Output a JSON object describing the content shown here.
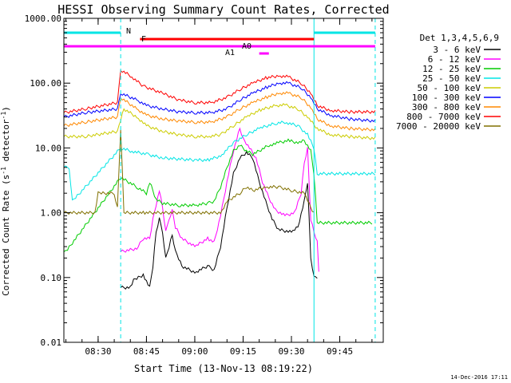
{
  "chart_data": {
    "type": "line",
    "title": "HESSI Observing Summary Count Rates, Corrected",
    "xlabel": "Start Time (13-Nov-13 08:19:22)",
    "ylabel": "Corrected Count Rate (s⁻¹ detector⁻¹)",
    "ylabel_main": "Corrected Count Rate (s",
    "ylabel_mid": ")",
    "ylabel_sup1": "-1",
    "ylabel_sup2": "-1",
    "ylabel_detector": "detector",
    "timestamp": "14-Dec-2016 17:11",
    "ylim": [
      0.01,
      1000
    ],
    "yscale": "log",
    "xlim_minutes": [
      "08:19:22",
      "09:58:30"
    ],
    "y_ticks": [
      {
        "value": 1000,
        "label": "1000.00"
      },
      {
        "value": 100,
        "label": "100.00"
      },
      {
        "value": 10,
        "label": "10.00"
      },
      {
        "value": 1,
        "label": "1.00"
      },
      {
        "value": 0.1,
        "label": "0.10"
      },
      {
        "value": 0.01,
        "label": "0.01"
      }
    ],
    "x_ticks": [
      {
        "value": "08:30",
        "label": "08:30"
      },
      {
        "value": "08:45",
        "label": "08:45"
      },
      {
        "value": "09:00",
        "label": "09:00"
      },
      {
        "value": "09:15",
        "label": "09:15"
      },
      {
        "value": "09:30",
        "label": "09:30"
      },
      {
        "value": "09:45",
        "label": "09:45"
      }
    ],
    "legend_title": "Det 1,3,4,5,6,9",
    "legend_position": "right",
    "series": [
      {
        "name": "3 - 6 keV",
        "color": "#000000",
        "points": [
          [
            "08:37",
            0.07
          ],
          [
            "08:40",
            0.07
          ],
          [
            "08:41",
            0.09
          ],
          [
            "08:44",
            0.11
          ],
          [
            "08:46",
            0.07
          ],
          [
            "08:47",
            0.15
          ],
          [
            "08:48",
            0.5
          ],
          [
            "08:49",
            0.8
          ],
          [
            "08:50",
            0.5
          ],
          [
            "08:51",
            0.2
          ],
          [
            "08:52",
            0.3
          ],
          [
            "08:53",
            0.45
          ],
          [
            "08:54",
            0.25
          ],
          [
            "08:56",
            0.15
          ],
          [
            "09:00",
            0.12
          ],
          [
            "09:04",
            0.15
          ],
          [
            "09:06",
            0.13
          ],
          [
            "09:08",
            0.3
          ],
          [
            "09:10",
            1.2
          ],
          [
            "09:12",
            4
          ],
          [
            "09:14",
            7
          ],
          [
            "09:16",
            8.5
          ],
          [
            "09:18",
            7
          ],
          [
            "09:20",
            3
          ],
          [
            "09:22",
            1.5
          ],
          [
            "09:24",
            0.8
          ],
          [
            "09:26",
            0.55
          ],
          [
            "09:30",
            0.5
          ],
          [
            "09:32",
            0.6
          ],
          [
            "09:34",
            1.5
          ],
          [
            "09:35",
            3
          ],
          [
            "09:36",
            0.2
          ],
          [
            "09:37",
            0.1
          ],
          [
            "09:38",
            0.1
          ]
        ]
      },
      {
        "name": "6 - 12 keV",
        "color": "#ff00ff",
        "points": [
          [
            "08:37",
            0.25
          ],
          [
            "08:42",
            0.28
          ],
          [
            "08:44",
            0.4
          ],
          [
            "08:46",
            0.4
          ],
          [
            "08:47",
            0.8
          ],
          [
            "08:49",
            2.2
          ],
          [
            "08:50",
            1.2
          ],
          [
            "08:51",
            0.5
          ],
          [
            "08:52",
            0.8
          ],
          [
            "08:53",
            1.1
          ],
          [
            "08:54",
            0.6
          ],
          [
            "08:56",
            0.4
          ],
          [
            "09:00",
            0.3
          ],
          [
            "09:04",
            0.4
          ],
          [
            "09:06",
            0.35
          ],
          [
            "09:08",
            0.9
          ],
          [
            "09:10",
            3
          ],
          [
            "09:12",
            9
          ],
          [
            "09:14",
            20
          ],
          [
            "09:15",
            14
          ],
          [
            "09:17",
            10
          ],
          [
            "09:19",
            7
          ],
          [
            "09:21",
            3
          ],
          [
            "09:23",
            1.7
          ],
          [
            "09:25",
            1.1
          ],
          [
            "09:28",
            0.9
          ],
          [
            "09:31",
            1
          ],
          [
            "09:33",
            2
          ],
          [
            "09:34",
            6
          ],
          [
            "09:35",
            10
          ],
          [
            "09:36",
            0.8
          ],
          [
            "09:37",
            0.5
          ],
          [
            "09:38",
            0.35
          ],
          [
            "09:38.5",
            0.12
          ]
        ]
      },
      {
        "name": "12 - 25 keV",
        "color": "#00cc00",
        "points": [
          [
            "08:19:22",
            0.25
          ],
          [
            "08:20",
            0.25
          ],
          [
            "08:37",
            3.5
          ],
          [
            "08:42",
            2.5
          ],
          [
            "08:45",
            2
          ],
          [
            "08:46",
            3
          ],
          [
            "08:48",
            1.6
          ],
          [
            "08:50",
            1.4
          ],
          [
            "08:55",
            1.3
          ],
          [
            "09:00",
            1.3
          ],
          [
            "09:04",
            1.4
          ],
          [
            "09:06",
            1.5
          ],
          [
            "09:08",
            2.5
          ],
          [
            "09:10",
            5
          ],
          [
            "09:12",
            9
          ],
          [
            "09:14",
            11
          ],
          [
            "09:16",
            9
          ],
          [
            "09:18",
            8
          ],
          [
            "09:20",
            9
          ],
          [
            "09:23",
            11
          ],
          [
            "09:26",
            12
          ],
          [
            "09:29",
            13
          ],
          [
            "09:32",
            12
          ],
          [
            "09:34",
            13
          ],
          [
            "09:36",
            9
          ],
          [
            "09:37",
            4
          ],
          [
            "09:38",
            0.7
          ],
          [
            "09:55",
            0.7
          ]
        ]
      },
      {
        "name": "25 - 50 keV",
        "color": "#00e5e5",
        "points": [
          [
            "08:19:22",
            5
          ],
          [
            "08:21",
            5
          ],
          [
            "08:22",
            1.5
          ],
          [
            "08:37",
            10
          ],
          [
            "08:40",
            9
          ],
          [
            "08:45",
            8
          ],
          [
            "08:50",
            7
          ],
          [
            "09:00",
            6.5
          ],
          [
            "09:04",
            6.5
          ],
          [
            "09:08",
            7.5
          ],
          [
            "09:12",
            12
          ],
          [
            "09:16",
            16
          ],
          [
            "09:20",
            20
          ],
          [
            "09:25",
            24
          ],
          [
            "09:28",
            25
          ],
          [
            "09:32",
            22
          ],
          [
            "09:35",
            16
          ],
          [
            "09:37",
            10
          ],
          [
            "09:38",
            4
          ],
          [
            "09:56",
            4
          ]
        ]
      },
      {
        "name": "50 - 100 keV",
        "color": "#cccc00",
        "points": [
          [
            "08:19:22",
            15
          ],
          [
            "08:26",
            15
          ],
          [
            "08:36",
            18
          ],
          [
            "08:38",
            40
          ],
          [
            "08:42",
            30
          ],
          [
            "08:45",
            22
          ],
          [
            "08:50",
            18
          ],
          [
            "08:55",
            16
          ],
          [
            "09:00",
            15
          ],
          [
            "09:04",
            15
          ],
          [
            "09:08",
            16
          ],
          [
            "09:12",
            22
          ],
          [
            "09:16",
            30
          ],
          [
            "09:20",
            38
          ],
          [
            "09:25",
            45
          ],
          [
            "09:28",
            46
          ],
          [
            "09:32",
            40
          ],
          [
            "09:35",
            30
          ],
          [
            "09:38",
            20
          ],
          [
            "09:42",
            16
          ],
          [
            "09:48",
            15
          ],
          [
            "09:56",
            14
          ]
        ]
      },
      {
        "name": "100 - 300 keV",
        "color": "#0000ff",
        "points": [
          [
            "08:19:22",
            30
          ],
          [
            "08:26",
            35
          ],
          [
            "08:36",
            40
          ],
          [
            "08:37",
            70
          ],
          [
            "08:42",
            55
          ],
          [
            "08:45",
            45
          ],
          [
            "08:50",
            40
          ],
          [
            "08:55",
            36
          ],
          [
            "09:00",
            35
          ],
          [
            "09:05",
            35
          ],
          [
            "09:10",
            40
          ],
          [
            "09:14",
            55
          ],
          [
            "09:18",
            70
          ],
          [
            "09:22",
            85
          ],
          [
            "09:26",
            100
          ],
          [
            "09:29",
            100
          ],
          [
            "09:33",
            85
          ],
          [
            "09:36",
            60
          ],
          [
            "09:38",
            40
          ],
          [
            "09:42",
            32
          ],
          [
            "09:48",
            28
          ],
          [
            "09:56",
            26
          ]
        ]
      },
      {
        "name": "300 - 800 keV",
        "color": "#ff8800",
        "points": [
          [
            "08:19:22",
            22
          ],
          [
            "08:26",
            25
          ],
          [
            "08:36",
            30
          ],
          [
            "08:37",
            60
          ],
          [
            "08:42",
            40
          ],
          [
            "08:45",
            32
          ],
          [
            "08:50",
            28
          ],
          [
            "08:55",
            26
          ],
          [
            "09:00",
            25
          ],
          [
            "09:05",
            25
          ],
          [
            "09:10",
            30
          ],
          [
            "09:14",
            40
          ],
          [
            "09:18",
            50
          ],
          [
            "09:22",
            60
          ],
          [
            "09:26",
            70
          ],
          [
            "09:29",
            70
          ],
          [
            "09:33",
            60
          ],
          [
            "09:36",
            42
          ],
          [
            "09:38",
            28
          ],
          [
            "09:42",
            22
          ],
          [
            "09:48",
            20
          ],
          [
            "09:56",
            19
          ]
        ]
      },
      {
        "name": "800 - 7000 keV",
        "color": "#ff0000",
        "points": [
          [
            "08:19:22",
            35
          ],
          [
            "08:26",
            40
          ],
          [
            "08:36",
            50
          ],
          [
            "08:37",
            160
          ],
          [
            "08:40",
            130
          ],
          [
            "08:44",
            90
          ],
          [
            "08:50",
            70
          ],
          [
            "08:55",
            55
          ],
          [
            "09:00",
            50
          ],
          [
            "09:05",
            50
          ],
          [
            "09:10",
            60
          ],
          [
            "09:14",
            80
          ],
          [
            "09:18",
            100
          ],
          [
            "09:22",
            120
          ],
          [
            "09:26",
            130
          ],
          [
            "09:29",
            125
          ],
          [
            "09:33",
            100
          ],
          [
            "09:36",
            70
          ],
          [
            "09:38",
            45
          ],
          [
            "09:42",
            38
          ],
          [
            "09:48",
            36
          ],
          [
            "09:56",
            36
          ]
        ]
      },
      {
        "name": "7000 - 20000 keV",
        "color": "#807000",
        "points": [
          [
            "08:19:22",
            1
          ],
          [
            "08:29",
            1
          ],
          [
            "08:30",
            2
          ],
          [
            "08:35",
            2
          ],
          [
            "08:36",
            1.2
          ],
          [
            "08:37",
            20
          ],
          [
            "08:38",
            1
          ],
          [
            "08:40",
            1
          ],
          [
            "08:44",
            1
          ],
          [
            "09:08",
            1
          ],
          [
            "09:10",
            1.5
          ],
          [
            "09:14",
            2
          ],
          [
            "09:16",
            2.5
          ],
          [
            "09:18",
            2.2
          ],
          [
            "09:22",
            2.5
          ],
          [
            "09:26",
            2.5
          ],
          [
            "09:30",
            2.2
          ],
          [
            "09:34",
            2
          ],
          [
            "09:36",
            1.2
          ],
          [
            "09:37",
            1
          ]
        ]
      }
    ],
    "flag_bars": [
      {
        "label": "N",
        "color": "#00e5e5",
        "level": 1,
        "segments": [
          [
            "08:19:22",
            "08:37"
          ],
          [
            "09:37",
            "09:56"
          ]
        ]
      },
      {
        "label": "F",
        "color": "#ff0000",
        "level": 2,
        "segments": [
          [
            "08:43",
            "09:37"
          ]
        ]
      },
      {
        "label": "A0",
        "color": "#ff00ff",
        "level": 3,
        "segments": [
          [
            "08:19:22",
            "09:56"
          ]
        ]
      },
      {
        "label": "A1",
        "color": "#ff00ff",
        "level": 4,
        "segments": [
          [
            "09:20",
            "09:23"
          ]
        ]
      }
    ],
    "vertical_lines": [
      {
        "time": "08:19:22",
        "style": "solid",
        "color": "#00e5e5"
      },
      {
        "time": "08:37",
        "style": "dashed",
        "color": "#00e5e5"
      },
      {
        "time": "09:37",
        "style": "solid",
        "color": "#00e5e5"
      },
      {
        "time": "09:56",
        "style": "dashed",
        "color": "#00e5e5"
      }
    ],
    "grid": false
  }
}
